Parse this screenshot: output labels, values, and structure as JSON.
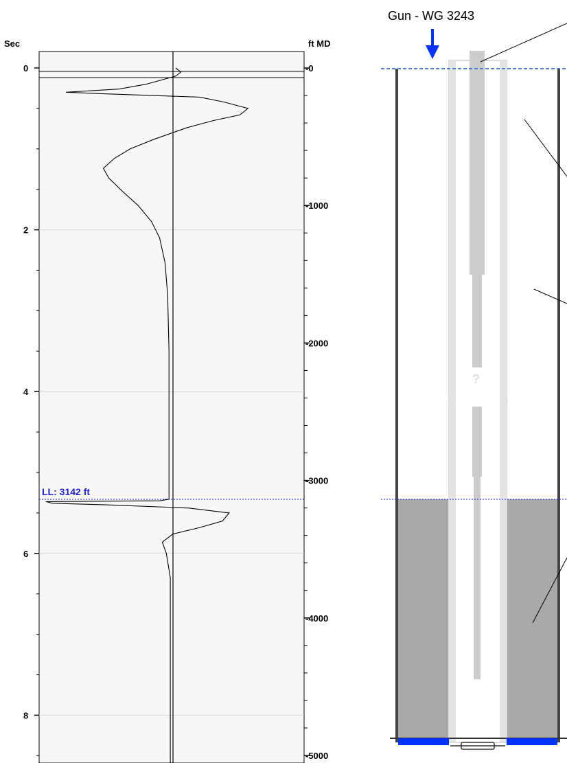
{
  "chart_data": {
    "type": "line",
    "left_axis": {
      "label": "Sec",
      "ticks": [
        0,
        2,
        4,
        6,
        8
      ],
      "range": [
        0,
        8.6
      ]
    },
    "right_axis": {
      "label": "ft MD",
      "ticks": [
        0,
        1000,
        2000,
        3000,
        4000,
        5000
      ],
      "range": [
        0,
        5050
      ]
    },
    "grid": "horizontal",
    "series": [
      {
        "points": [
          [
            0.02,
            0.0
          ],
          [
            0.06,
            0.05
          ],
          [
            0.02,
            0.1
          ],
          [
            -0.2,
            0.2
          ],
          [
            -0.4,
            0.26
          ],
          [
            -0.8,
            0.3
          ],
          [
            -0.5,
            0.32
          ],
          [
            0.2,
            0.36
          ],
          [
            0.38,
            0.42
          ],
          [
            0.56,
            0.5
          ],
          [
            0.5,
            0.58
          ],
          [
            0.3,
            0.65
          ],
          [
            0.1,
            0.74
          ],
          [
            -0.14,
            0.88
          ],
          [
            -0.32,
            1.0
          ],
          [
            -0.44,
            1.12
          ],
          [
            -0.52,
            1.24
          ],
          [
            -0.48,
            1.36
          ],
          [
            -0.38,
            1.52
          ],
          [
            -0.26,
            1.7
          ],
          [
            -0.16,
            1.9
          ],
          [
            -0.1,
            2.1
          ],
          [
            -0.06,
            2.4
          ],
          [
            -0.04,
            2.8
          ],
          [
            -0.03,
            3.5
          ],
          [
            -0.03,
            5.33
          ],
          [
            -0.1,
            5.35
          ],
          [
            -0.95,
            5.36
          ],
          [
            -0.9,
            5.38
          ],
          [
            -0.5,
            5.4
          ],
          [
            0.12,
            5.44
          ],
          [
            0.42,
            5.5
          ],
          [
            0.37,
            5.6
          ],
          [
            0.2,
            5.68
          ],
          [
            0.0,
            5.76
          ],
          [
            -0.08,
            5.86
          ],
          [
            -0.05,
            6.0
          ],
          [
            -0.02,
            6.3
          ],
          [
            -0.02,
            8.6
          ]
        ]
      }
    ],
    "annotations": [
      {
        "text": "LL: 3142 ft",
        "depth_ft": 3142,
        "time_sec": 5.33
      }
    ]
  },
  "wellbore": {
    "top_label": "Gun - WG 3243",
    "question_marks": [
      "?",
      "?",
      "?"
    ],
    "fluid_level_ft": 3142,
    "colors": {
      "accent_blue": "#0033ff",
      "fluid": "#a9a9a9",
      "tubing": "#d6d6d6",
      "casing": "#444444"
    }
  }
}
